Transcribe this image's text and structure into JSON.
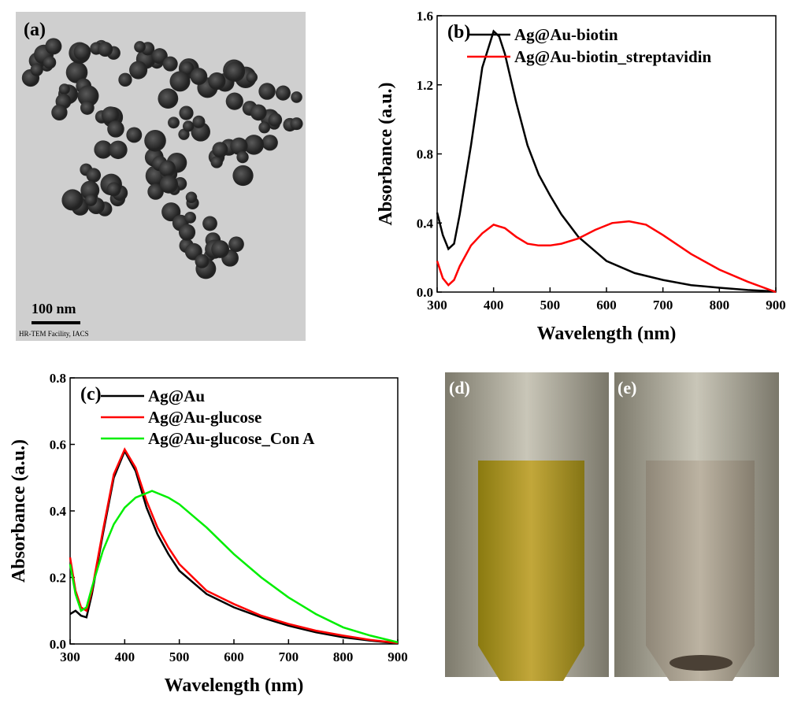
{
  "images": [
    {
      "label": "(a)",
      "scale_bar": "100 nm",
      "credit": "HR-TEM Facility, IACS"
    },
    {
      "label": "(d)"
    },
    {
      "label": "(e)"
    }
  ],
  "chart_data": [
    {
      "type": "line",
      "panel_label": "(b)",
      "x_label": "Wavelength (nm)",
      "y_label": "Absorbance (a.u.)",
      "xlim": [
        300,
        900
      ],
      "xticks": [
        300,
        400,
        500,
        600,
        700,
        800,
        900
      ],
      "ylim": [
        0,
        1.6
      ],
      "yticks": [
        {
          "value": 0,
          "label": "0.0"
        },
        0.4,
        0.8,
        1.2,
        1.6
      ],
      "series": [
        {
          "name": "Ag@Au-biotin",
          "color": "#000000",
          "x": [
            300,
            310,
            320,
            330,
            340,
            360,
            380,
            400,
            410,
            420,
            440,
            460,
            480,
            500,
            520,
            550,
            600,
            650,
            700,
            750,
            800,
            850,
            900
          ],
          "values": [
            0.46,
            0.33,
            0.25,
            0.28,
            0.45,
            0.85,
            1.3,
            1.51,
            1.48,
            1.38,
            1.1,
            0.85,
            0.68,
            0.56,
            0.45,
            0.32,
            0.18,
            0.11,
            0.07,
            0.04,
            0.025,
            0.012,
            0.003
          ]
        },
        {
          "name": "Ag@Au-biotin_streptavidin",
          "color": "#ff0000",
          "x": [
            300,
            310,
            320,
            330,
            340,
            360,
            380,
            400,
            420,
            440,
            460,
            480,
            500,
            520,
            550,
            580,
            610,
            640,
            670,
            700,
            750,
            800,
            850,
            900
          ],
          "values": [
            0.18,
            0.08,
            0.04,
            0.07,
            0.15,
            0.27,
            0.34,
            0.39,
            0.37,
            0.32,
            0.28,
            0.27,
            0.27,
            0.28,
            0.31,
            0.36,
            0.4,
            0.41,
            0.39,
            0.33,
            0.22,
            0.13,
            0.06,
            0.0
          ]
        }
      ]
    },
    {
      "type": "line",
      "panel_label": "(c)",
      "x_label": "Wavelength (nm)",
      "y_label": "Absorbance (a.u.)",
      "xlim": [
        300,
        900
      ],
      "xticks": [
        300,
        400,
        500,
        600,
        700,
        800,
        900
      ],
      "ylim": [
        0,
        0.8
      ],
      "yticks": [
        {
          "value": 0,
          "label": "0.0"
        },
        0.2,
        0.4,
        0.6,
        0.8
      ],
      "series": [
        {
          "name": "Ag@Au",
          "color": "#000000",
          "x": [
            300,
            310,
            320,
            330,
            340,
            360,
            380,
            400,
            420,
            440,
            460,
            480,
            500,
            550,
            600,
            650,
            700,
            750,
            800,
            850,
            900
          ],
          "values": [
            0.09,
            0.1,
            0.085,
            0.08,
            0.15,
            0.33,
            0.5,
            0.58,
            0.52,
            0.41,
            0.33,
            0.27,
            0.22,
            0.15,
            0.11,
            0.08,
            0.055,
            0.035,
            0.02,
            0.01,
            0.002
          ]
        },
        {
          "name": "Ag@Au-glucose",
          "color": "#ff0000",
          "x": [
            300,
            310,
            320,
            330,
            340,
            360,
            380,
            400,
            420,
            440,
            460,
            480,
            500,
            550,
            600,
            650,
            700,
            750,
            800,
            850,
            900
          ],
          "values": [
            0.26,
            0.16,
            0.11,
            0.1,
            0.16,
            0.34,
            0.51,
            0.585,
            0.53,
            0.43,
            0.35,
            0.29,
            0.24,
            0.16,
            0.12,
            0.085,
            0.06,
            0.04,
            0.025,
            0.012,
            0.003
          ]
        },
        {
          "name": "Ag@Au-glucose_Con A",
          "color": "#00ee00",
          "x": [
            300,
            310,
            320,
            330,
            340,
            360,
            380,
            400,
            420,
            450,
            480,
            500,
            550,
            600,
            650,
            700,
            750,
            800,
            850,
            900
          ],
          "values": [
            0.24,
            0.15,
            0.1,
            0.11,
            0.17,
            0.28,
            0.36,
            0.41,
            0.44,
            0.46,
            0.44,
            0.42,
            0.35,
            0.27,
            0.2,
            0.14,
            0.09,
            0.05,
            0.025,
            0.005
          ]
        }
      ]
    }
  ]
}
